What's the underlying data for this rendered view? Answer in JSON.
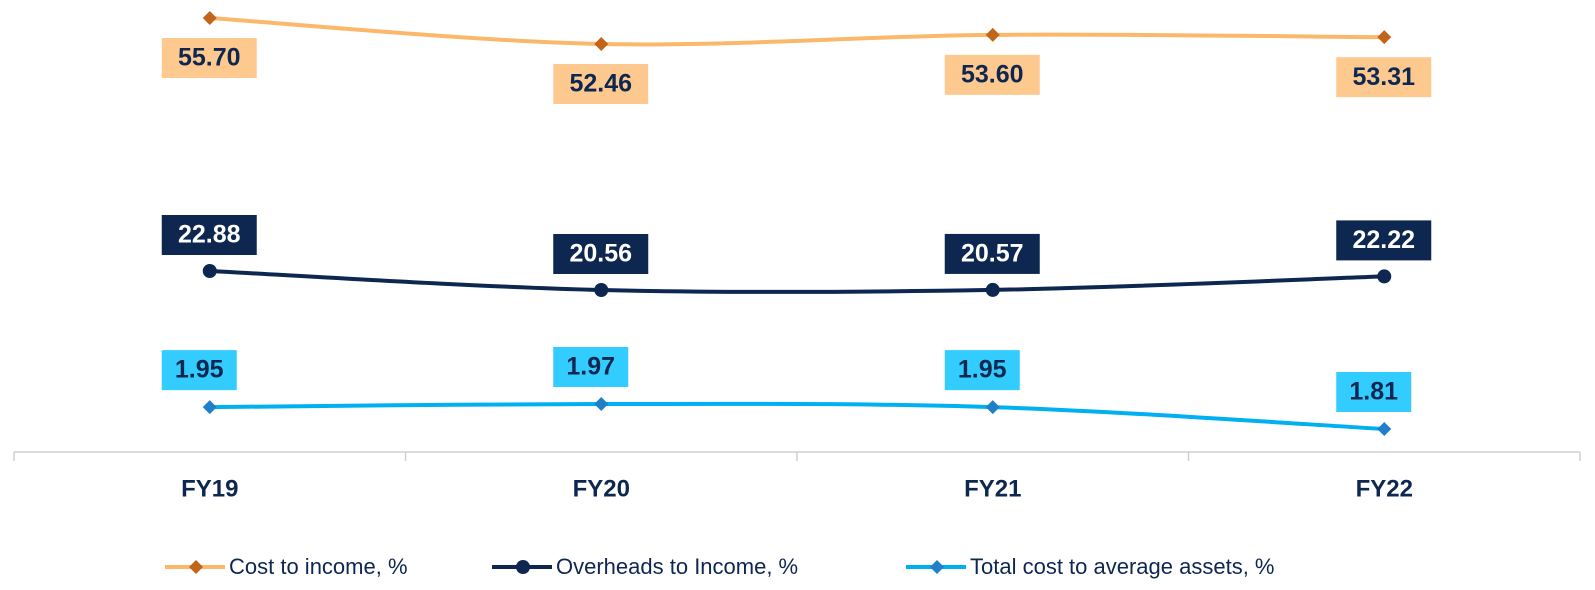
{
  "chart_data": {
    "type": "line",
    "categories": [
      "FY19",
      "FY20",
      "FY21",
      "FY22"
    ],
    "series": [
      {
        "name": "Cost to income, %",
        "color": "#fbb86a",
        "marker": "diamond",
        "marker_color": "#c0651a",
        "label_background": "#fdc98f",
        "label_color": "#0d2750",
        "values": [
          55.7,
          52.46,
          53.6,
          53.31
        ],
        "value_labels": [
          "55.70",
          "52.46",
          "53.60",
          "53.31"
        ]
      },
      {
        "name": "Overheads to Income, %",
        "color": "#0d2750",
        "marker": "circle",
        "marker_color": "#0d2750",
        "label_background": "#0d2750",
        "label_color": "#ffffff",
        "values": [
          22.88,
          20.56,
          20.57,
          22.22
        ],
        "value_labels": [
          "22.88",
          "20.56",
          "20.57",
          "22.22"
        ]
      },
      {
        "name": "Total cost to average assets, %",
        "color": "#00b0f0",
        "marker": "diamond",
        "marker_color": "#1f7fc8",
        "label_background": "#33ccff",
        "label_color": "#0d2750",
        "values": [
          1.95,
          1.97,
          1.95,
          1.81
        ],
        "value_labels": [
          "1.95",
          "1.97",
          "1.95",
          "1.81"
        ]
      }
    ]
  }
}
